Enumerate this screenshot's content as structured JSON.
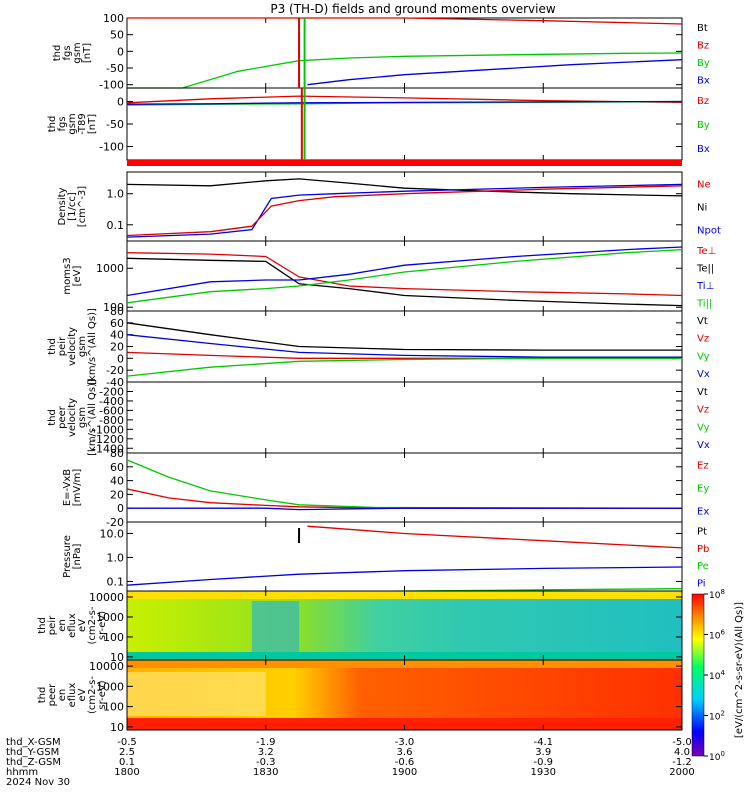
{
  "title": "P3 (TH-D) fields and ground moments overview",
  "colors": {
    "black": "#000000",
    "red": "#e00000",
    "green": "#00c800",
    "blue": "#0000e0",
    "flag": "#ff0000"
  },
  "chart_data": {
    "type": "line",
    "x_axis": {
      "range": [
        "18:00",
        "20:00"
      ],
      "rows": [
        {
          "label": "thd_X-GSM",
          "values": [
            "-0.5",
            "-1.9",
            "-3.0",
            "-4.1",
            "-5.0"
          ]
        },
        {
          "label": "thd_Y-GSM",
          "values": [
            "2.5",
            "3.2",
            "3.6",
            "3.9",
            "4.0"
          ]
        },
        {
          "label": "thd_Z-GSM",
          "values": [
            "0.1",
            "-0.3",
            "-0.6",
            "-0.9",
            "-1.2"
          ]
        },
        {
          "label": "hhmm",
          "values": [
            "1800",
            "1830",
            "1900",
            "1930",
            "2000"
          ]
        }
      ],
      "date": "2024 Nov 30"
    },
    "panels": [
      {
        "id": "fgs",
        "ylabel": [
          "thd",
          "fgs",
          "gsm",
          "[nT]"
        ],
        "ylim": [
          -110,
          100
        ],
        "scale": "linear",
        "ticks": [
          "100",
          "50",
          "0",
          "-50",
          "-100"
        ],
        "legend": [
          {
            "name": "Bt",
            "color": "black"
          },
          {
            "name": "Bz",
            "color": "red"
          },
          {
            "name": "By",
            "color": "green"
          },
          {
            "name": "Bx",
            "color": "blue"
          }
        ],
        "series": [
          {
            "name": "Bz",
            "color": "red",
            "t": [
              18.0,
              18.62,
              19.0,
              19.5,
              20.0
            ],
            "v": [
              100,
              100,
              100,
              92,
              82
            ]
          },
          {
            "name": "By",
            "color": "green",
            "t": [
              18.0,
              18.2,
              18.4,
              18.62,
              18.8,
              19.0,
              19.4,
              19.8,
              20.0
            ],
            "v": [
              -110,
              -110,
              -60,
              -28,
              -20,
              -15,
              -10,
              -6,
              -5
            ]
          },
          {
            "name": "Bx",
            "color": "blue",
            "t": [
              18.65,
              18.8,
              19.0,
              19.3,
              19.6,
              20.0
            ],
            "v": [
              -100,
              -85,
              -70,
              -55,
              -40,
              -25
            ]
          }
        ]
      },
      {
        "id": "fgs2",
        "ylabel": [
          "thd",
          "fgs",
          "gsm",
          "-T89",
          "[nT]"
        ],
        "ylim": [
          -130,
          30
        ],
        "scale": "linear",
        "ticks": [
          "0",
          "-50",
          "-100"
        ],
        "legend": [
          {
            "name": "Bz",
            "color": "red"
          },
          {
            "name": "By",
            "color": "green"
          },
          {
            "name": "Bx",
            "color": "blue"
          }
        ],
        "series": [
          {
            "name": "Bz",
            "color": "red",
            "t": [
              18.0,
              18.3,
              18.62,
              19.0,
              19.5,
              20.0
            ],
            "v": [
              -3,
              6,
              12,
              8,
              2,
              -2
            ]
          },
          {
            "name": "By",
            "color": "green",
            "t": [
              18.0,
              18.3,
              18.62,
              19.0,
              19.5,
              20.0
            ],
            "v": [
              -8,
              -6,
              -5,
              -3,
              -2,
              0
            ]
          },
          {
            "name": "Bx",
            "color": "blue",
            "t": [
              18.0,
              18.3,
              18.62,
              19.0,
              19.5,
              20.0
            ],
            "v": [
              -6,
              -5,
              -3,
              -2,
              -1,
              0
            ]
          }
        ]
      },
      {
        "id": "dens",
        "ylabel": [
          "Density",
          "[1/cc]",
          "[cm^-3]"
        ],
        "ylim": [
          0.03,
          5
        ],
        "scale": "log",
        "ticks": [
          "1.0",
          "0.1"
        ],
        "legend": [
          {
            "name": "Ne",
            "color": "red"
          },
          {
            "name": "Ni",
            "color": "black"
          },
          {
            "name": "Npot",
            "color": "blue"
          }
        ],
        "series": [
          {
            "name": "Ni",
            "color": "black",
            "t": [
              18.0,
              18.3,
              18.5,
              18.62,
              18.8,
              19.0,
              19.3,
              19.6,
              20.0
            ],
            "v": [
              2.0,
              1.8,
              2.6,
              3.0,
              2.2,
              1.5,
              1.2,
              1.0,
              0.85
            ]
          },
          {
            "name": "Npot",
            "color": "blue",
            "t": [
              18.0,
              18.3,
              18.45,
              18.52,
              18.62,
              18.75,
              19.0,
              19.5,
              20.0
            ],
            "v": [
              0.04,
              0.05,
              0.07,
              0.7,
              0.9,
              1.0,
              1.2,
              1.6,
              2.0
            ]
          },
          {
            "name": "Ne",
            "color": "red",
            "t": [
              18.0,
              18.3,
              18.45,
              18.52,
              18.62,
              18.75,
              19.0,
              19.5,
              20.0
            ],
            "v": [
              0.045,
              0.06,
              0.09,
              0.4,
              0.6,
              0.8,
              1.0,
              1.4,
              1.8
            ]
          }
        ]
      },
      {
        "id": "temp",
        "ylabel": [
          "moms3",
          "[eV]"
        ],
        "ylim": [
          80,
          5000
        ],
        "scale": "log",
        "ticks": [
          "1000",
          "100"
        ],
        "legend": [
          {
            "name": "Te⊥",
            "color": "red"
          },
          {
            "name": "Te||",
            "color": "black"
          },
          {
            "name": "Ti⊥",
            "color": "blue"
          },
          {
            "name": "Ti||",
            "color": "green"
          }
        ],
        "series": [
          {
            "name": "Te⊥",
            "color": "red",
            "t": [
              18.0,
              18.3,
              18.5,
              18.62,
              18.8,
              19.0,
              19.4,
              19.8,
              20.0
            ],
            "v": [
              2500,
              2300,
              2000,
              600,
              350,
              300,
              250,
              220,
              200
            ]
          },
          {
            "name": "Te||",
            "color": "black",
            "t": [
              18.0,
              18.3,
              18.5,
              18.62,
              18.8,
              19.0,
              19.4,
              19.8,
              20.0
            ],
            "v": [
              1800,
              1600,
              1500,
              400,
              300,
              200,
              150,
              120,
              110
            ]
          },
          {
            "name": "Ti⊥",
            "color": "blue",
            "t": [
              18.0,
              18.3,
              18.5,
              18.62,
              18.8,
              19.0,
              19.4,
              19.8,
              20.0
            ],
            "v": [
              200,
              450,
              500,
              500,
              700,
              1200,
              2000,
              3000,
              3500
            ]
          },
          {
            "name": "Ti||",
            "color": "green",
            "t": [
              18.0,
              18.3,
              18.5,
              18.62,
              18.8,
              19.0,
              19.4,
              19.8,
              20.0
            ],
            "v": [
              130,
              250,
              300,
              350,
              500,
              800,
              1500,
              2500,
              3000
            ]
          }
        ]
      },
      {
        "id": "veli",
        "ylabel": [
          "thd",
          "peir",
          "velocity",
          "gsm",
          "[km/s^(All Qs)]"
        ],
        "ylim": [
          -40,
          80
        ],
        "scale": "linear",
        "ticks": [
          "80",
          "60",
          "40",
          "20",
          "0",
          "-20",
          "-40"
        ],
        "legend": [
          {
            "name": "Vt",
            "color": "black"
          },
          {
            "name": "Vz",
            "color": "red"
          },
          {
            "name": "Vy",
            "color": "green"
          },
          {
            "name": "Vx",
            "color": "blue"
          }
        ],
        "series": [
          {
            "name": "Vt",
            "color": "black",
            "t": [
              18.0,
              18.3,
              18.62,
              19.0,
              19.5,
              20.0
            ],
            "v": [
              60,
              40,
              20,
              15,
              14,
              14
            ]
          },
          {
            "name": "Vz",
            "color": "red",
            "t": [
              18.0,
              18.3,
              18.62,
              19.0,
              19.5,
              20.0
            ],
            "v": [
              10,
              5,
              0,
              0,
              0,
              0
            ]
          },
          {
            "name": "Vy",
            "color": "green",
            "t": [
              18.0,
              18.3,
              18.62,
              19.0,
              19.5,
              20.0
            ],
            "v": [
              -30,
              -15,
              -5,
              -2,
              0,
              0
            ]
          },
          {
            "name": "Vx",
            "color": "blue",
            "t": [
              18.0,
              18.3,
              18.62,
              19.0,
              19.5,
              20.0
            ],
            "v": [
              40,
              25,
              10,
              5,
              2,
              2
            ]
          }
        ]
      },
      {
        "id": "vele",
        "ylabel": [
          "thd",
          "peer",
          "velocity",
          "gsm",
          "[km/s^(All Qs)]"
        ],
        "ylim": [
          -1500,
          0
        ],
        "scale": "linear",
        "ticks": [
          "-200",
          "-400",
          "-600",
          "-800",
          "-1000",
          "-1200",
          "-1400"
        ],
        "legend": [
          {
            "name": "Vt",
            "color": "black"
          },
          {
            "name": "Vz",
            "color": "red"
          },
          {
            "name": "Vy",
            "color": "green"
          },
          {
            "name": "Vx",
            "color": "blue"
          }
        ],
        "series": []
      },
      {
        "id": "efield",
        "ylabel": [
          "E=-VxB",
          "[mV/m]"
        ],
        "ylim": [
          -20,
          80
        ],
        "scale": "linear",
        "ticks": [
          "80",
          "60",
          "40",
          "20",
          "0",
          "-20"
        ],
        "legend": [
          {
            "name": "Ez",
            "color": "red"
          },
          {
            "name": "Ey",
            "color": "green"
          },
          {
            "name": "Ex",
            "color": "blue"
          }
        ],
        "series": [
          {
            "name": "Ey",
            "color": "green",
            "t": [
              18.0,
              18.15,
              18.3,
              18.5,
              18.62,
              18.9,
              20.0
            ],
            "v": [
              70,
              45,
              25,
              12,
              5,
              1,
              0
            ]
          },
          {
            "name": "Ez",
            "color": "red",
            "t": [
              18.0,
              18.15,
              18.3,
              18.5,
              18.62,
              18.9,
              20.0
            ],
            "v": [
              28,
              15,
              8,
              4,
              2,
              0,
              0
            ]
          },
          {
            "name": "Ex",
            "color": "blue",
            "t": [
              18.0,
              18.5,
              18.62,
              19.0,
              20.0
            ],
            "v": [
              0,
              0,
              -2,
              0,
              0
            ]
          }
        ]
      },
      {
        "id": "press",
        "ylabel": [
          "Pressure",
          "[nPa]"
        ],
        "ylim": [
          0.04,
          30
        ],
        "scale": "log",
        "ticks": [
          "10.0",
          "1.0",
          "0.1"
        ],
        "legend": [
          {
            "name": "Pt",
            "color": "black"
          },
          {
            "name": "Pb",
            "color": "red"
          },
          {
            "name": "Pe",
            "color": "green"
          },
          {
            "name": "Pi",
            "color": "blue"
          }
        ],
        "series": [
          {
            "name": "Pb",
            "color": "red",
            "t": [
              18.65,
              19.0,
              19.5,
              20.0
            ],
            "v": [
              20,
              10,
              5,
              2.5
            ]
          },
          {
            "name": "Pi",
            "color": "blue",
            "t": [
              18.0,
              18.3,
              18.62,
              19.0,
              19.5,
              20.0
            ],
            "v": [
              0.07,
              0.12,
              0.2,
              0.28,
              0.35,
              0.4
            ]
          },
          {
            "name": "Pe",
            "color": "green",
            "t": [
              18.0,
              18.3,
              18.62,
              19.0,
              19.5,
              20.0
            ],
            "v": [
              0.03,
              0.03,
              0.035,
              0.04,
              0.045,
              0.05
            ]
          }
        ]
      },
      {
        "id": "peir_spec",
        "ylabel": [
          "thd",
          "peir",
          "en",
          "eflux",
          "eV",
          "(cm2-s-",
          "sr-eV)"
        ],
        "ylim": [
          7,
          20000
        ],
        "scale": "log",
        "ticks": [
          "10000",
          "1000",
          "100",
          "10"
        ],
        "spectrogram": true
      },
      {
        "id": "peer_spec",
        "ylabel": [
          "thd",
          "peer",
          "en",
          "eflux",
          "eV",
          "(cm2-s-",
          "sr-eV)"
        ],
        "ylim": [
          7,
          20000
        ],
        "scale": "log",
        "ticks": [
          "10000",
          "1000",
          "100",
          "10"
        ],
        "spectrogram": true
      }
    ],
    "colorbar": {
      "ticks": [
        "10^8",
        "10^6",
        "10^4",
        "10^2",
        "10^0"
      ],
      "label": "[eV/(cm^2-s-sr-eV)(All Qs)]"
    }
  }
}
